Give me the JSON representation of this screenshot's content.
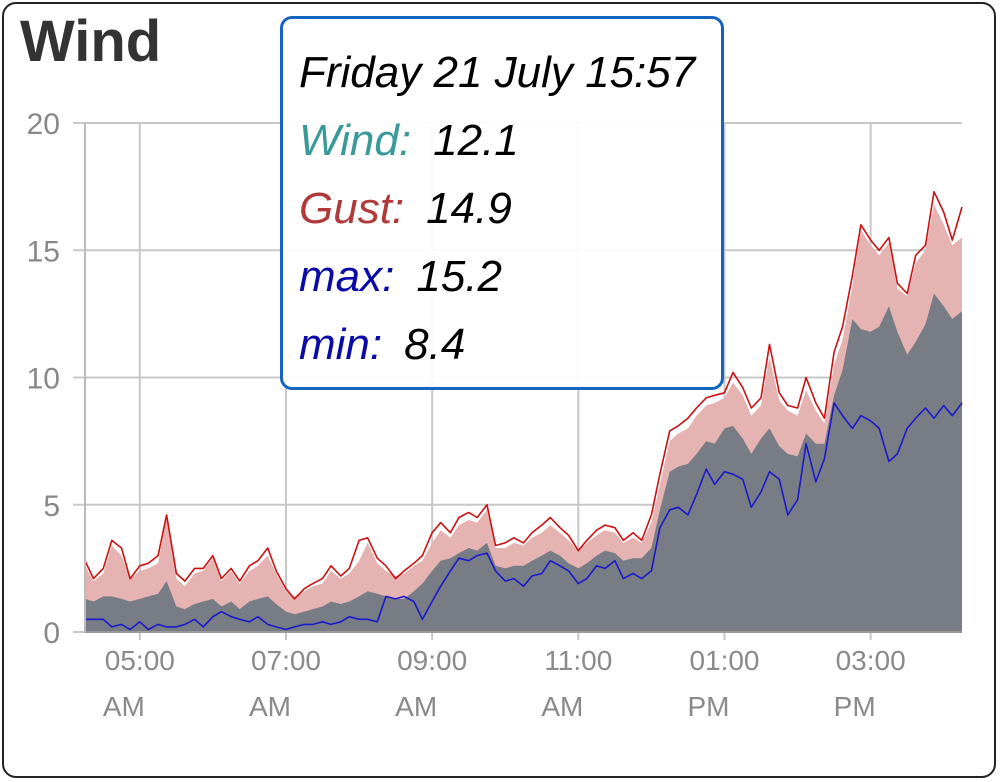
{
  "title": "Wind",
  "tooltip": {
    "date": "Friday 21 July 15:57",
    "rows": [
      {
        "label": "Wind:",
        "value": "12.1",
        "color": "#3a9a9a"
      },
      {
        "label": "Gust:",
        "value": "14.9",
        "color": "#b03a3a"
      },
      {
        "label": "max:",
        "value": "15.2",
        "color": "#0a0aa8"
      },
      {
        "label": "min:",
        "value": "8.4",
        "color": "#0a0aa8"
      }
    ]
  },
  "colors": {
    "wind_fill": "#787d85",
    "gust_fill": "#e6b3b3",
    "max_line": "#cc1111",
    "min_line": "#1a1acc",
    "grid": "#c8c8c8"
  },
  "chart_data": {
    "type": "area",
    "title": "Wind",
    "ylim": [
      0,
      20
    ],
    "yticks": [
      "0",
      "5",
      "10",
      "15",
      "20"
    ],
    "x_start": "04:15",
    "x_end": "16:15",
    "x_tick_times": [
      "05:00",
      "07:00",
      "09:00",
      "11:00",
      "13:00",
      "15:00"
    ],
    "x_tick_labels": [
      [
        "05:00",
        "AM"
      ],
      [
        "07:00",
        "AM"
      ],
      [
        "09:00",
        "AM"
      ],
      [
        "11:00",
        "AM"
      ],
      [
        "01:00",
        "PM"
      ],
      [
        "03:00",
        "PM"
      ]
    ],
    "times": [
      "04:15",
      "04:22",
      "04:30",
      "04:37",
      "04:45",
      "04:52",
      "05:00",
      "05:07",
      "05:15",
      "05:22",
      "05:30",
      "05:37",
      "05:45",
      "05:52",
      "06:00",
      "06:07",
      "06:15",
      "06:22",
      "06:30",
      "06:37",
      "06:45",
      "06:52",
      "07:00",
      "07:07",
      "07:15",
      "07:22",
      "07:30",
      "07:37",
      "07:45",
      "07:52",
      "08:00",
      "08:07",
      "08:15",
      "08:22",
      "08:30",
      "08:37",
      "08:45",
      "08:52",
      "09:00",
      "09:07",
      "09:15",
      "09:22",
      "09:30",
      "09:37",
      "09:45",
      "09:52",
      "10:00",
      "10:07",
      "10:15",
      "10:22",
      "10:30",
      "10:37",
      "10:45",
      "10:52",
      "11:00",
      "11:07",
      "11:15",
      "11:22",
      "11:30",
      "11:37",
      "11:45",
      "11:52",
      "12:00",
      "12:07",
      "12:15",
      "12:22",
      "12:30",
      "12:37",
      "12:45",
      "12:52",
      "13:00",
      "13:07",
      "13:15",
      "13:22",
      "13:30",
      "13:37",
      "13:45",
      "13:52",
      "14:00",
      "14:07",
      "14:15",
      "14:22",
      "14:30",
      "14:37",
      "14:45",
      "14:52",
      "15:00",
      "15:07",
      "15:15",
      "15:22",
      "15:30",
      "15:37",
      "15:45",
      "15:52",
      "16:00",
      "16:07",
      "16:15"
    ],
    "series": [
      {
        "name": "Gust",
        "values": [
          2.6,
          2.0,
          2.3,
          3.4,
          3.0,
          2.1,
          2.4,
          2.5,
          2.7,
          4.5,
          2.1,
          1.8,
          2.3,
          2.4,
          2.9,
          2.0,
          2.4,
          1.9,
          2.4,
          2.6,
          3.0,
          2.3,
          1.6,
          1.4,
          1.6,
          1.8,
          1.9,
          2.4,
          2.1,
          2.3,
          2.8,
          3.5,
          2.7,
          2.4,
          2.2,
          2.3,
          2.6,
          2.8,
          3.5,
          4.0,
          3.7,
          4.2,
          4.4,
          4.3,
          4.8,
          3.3,
          3.3,
          3.5,
          3.4,
          3.7,
          3.9,
          4.2,
          3.9,
          3.6,
          3.2,
          3.5,
          3.8,
          4.0,
          3.9,
          3.5,
          3.7,
          3.5,
          4.3,
          5.8,
          7.5,
          7.8,
          8.0,
          8.5,
          8.9,
          9.0,
          9.2,
          9.8,
          9.3,
          8.5,
          8.9,
          10.8,
          9.1,
          8.7,
          8.5,
          9.5,
          8.7,
          8.2,
          10.5,
          11.5,
          13.6,
          15.8,
          15.2,
          14.8,
          15.3,
          13.5,
          13.2,
          14.5,
          15.0,
          16.8,
          16.0,
          15.2,
          15.5
        ]
      },
      {
        "name": "max",
        "values": [
          2.8,
          2.1,
          2.5,
          3.6,
          3.3,
          2.1,
          2.6,
          2.7,
          3.0,
          4.6,
          2.3,
          2.0,
          2.5,
          2.5,
          3.0,
          2.1,
          2.5,
          2.0,
          2.6,
          2.8,
          3.3,
          2.4,
          1.7,
          1.3,
          1.7,
          1.9,
          2.1,
          2.6,
          2.2,
          2.5,
          3.6,
          3.7,
          2.9,
          2.6,
          2.1,
          2.4,
          2.7,
          3.0,
          3.9,
          4.3,
          3.9,
          4.5,
          4.7,
          4.5,
          5.0,
          3.4,
          3.5,
          3.7,
          3.5,
          3.9,
          4.2,
          4.5,
          4.1,
          3.8,
          3.2,
          3.6,
          4.0,
          4.2,
          4.1,
          3.6,
          3.9,
          3.6,
          4.6,
          6.2,
          7.9,
          8.1,
          8.4,
          8.8,
          9.2,
          9.3,
          9.4,
          10.2,
          9.6,
          8.8,
          9.2,
          11.3,
          9.4,
          8.9,
          8.8,
          10.0,
          9.0,
          8.4,
          11.0,
          12.0,
          14.0,
          16.0,
          15.4,
          15.0,
          15.5,
          13.7,
          13.3,
          14.8,
          15.2,
          17.3,
          16.5,
          15.4,
          16.7
        ]
      },
      {
        "name": "Wind",
        "values": [
          1.3,
          1.2,
          1.4,
          1.4,
          1.3,
          1.2,
          1.3,
          1.4,
          1.5,
          2.0,
          1.0,
          0.9,
          1.1,
          1.2,
          1.3,
          1.0,
          1.2,
          0.9,
          1.2,
          1.3,
          1.4,
          1.1,
          0.8,
          0.7,
          0.8,
          0.9,
          1.0,
          1.2,
          1.1,
          1.2,
          1.4,
          1.6,
          1.5,
          1.4,
          1.3,
          1.3,
          1.6,
          1.9,
          2.4,
          2.8,
          2.9,
          3.1,
          3.3,
          3.2,
          3.5,
          2.6,
          2.5,
          2.6,
          2.6,
          2.8,
          3.0,
          3.2,
          3.0,
          2.7,
          2.5,
          2.7,
          3.0,
          3.2,
          3.1,
          2.8,
          2.9,
          2.9,
          3.3,
          4.8,
          6.3,
          6.5,
          6.6,
          7.0,
          7.5,
          7.4,
          8.0,
          8.1,
          7.6,
          7.0,
          7.6,
          8.0,
          7.3,
          7.0,
          6.9,
          7.8,
          7.4,
          7.4,
          9.3,
          10.3,
          12.3,
          11.9,
          11.8,
          12.0,
          12.8,
          11.8,
          10.9,
          11.4,
          12.1,
          13.3,
          12.8,
          12.3,
          12.6
        ]
      },
      {
        "name": "min",
        "values": [
          0.5,
          0.5,
          0.5,
          0.2,
          0.3,
          0.1,
          0.4,
          0.1,
          0.3,
          0.2,
          0.2,
          0.3,
          0.5,
          0.2,
          0.6,
          0.8,
          0.6,
          0.5,
          0.4,
          0.6,
          0.3,
          0.2,
          0.1,
          0.2,
          0.3,
          0.3,
          0.4,
          0.3,
          0.4,
          0.6,
          0.5,
          0.5,
          0.4,
          1.4,
          1.3,
          1.4,
          1.2,
          0.5,
          1.2,
          1.8,
          2.4,
          2.9,
          2.8,
          3.0,
          3.1,
          2.4,
          2.0,
          2.1,
          1.8,
          2.2,
          2.3,
          2.8,
          2.6,
          2.4,
          1.9,
          2.1,
          2.6,
          2.5,
          2.8,
          2.1,
          2.3,
          2.1,
          2.4,
          4.1,
          4.8,
          4.9,
          4.6,
          5.4,
          6.4,
          5.8,
          6.3,
          6.2,
          6.0,
          4.9,
          5.5,
          6.3,
          6.0,
          4.6,
          5.2,
          7.4,
          5.9,
          6.8,
          9.0,
          8.5,
          8.0,
          8.5,
          8.3,
          8.0,
          6.7,
          7.0,
          8.0,
          8.4,
          8.8,
          8.4,
          8.9,
          8.5,
          9.0
        ]
      }
    ]
  }
}
